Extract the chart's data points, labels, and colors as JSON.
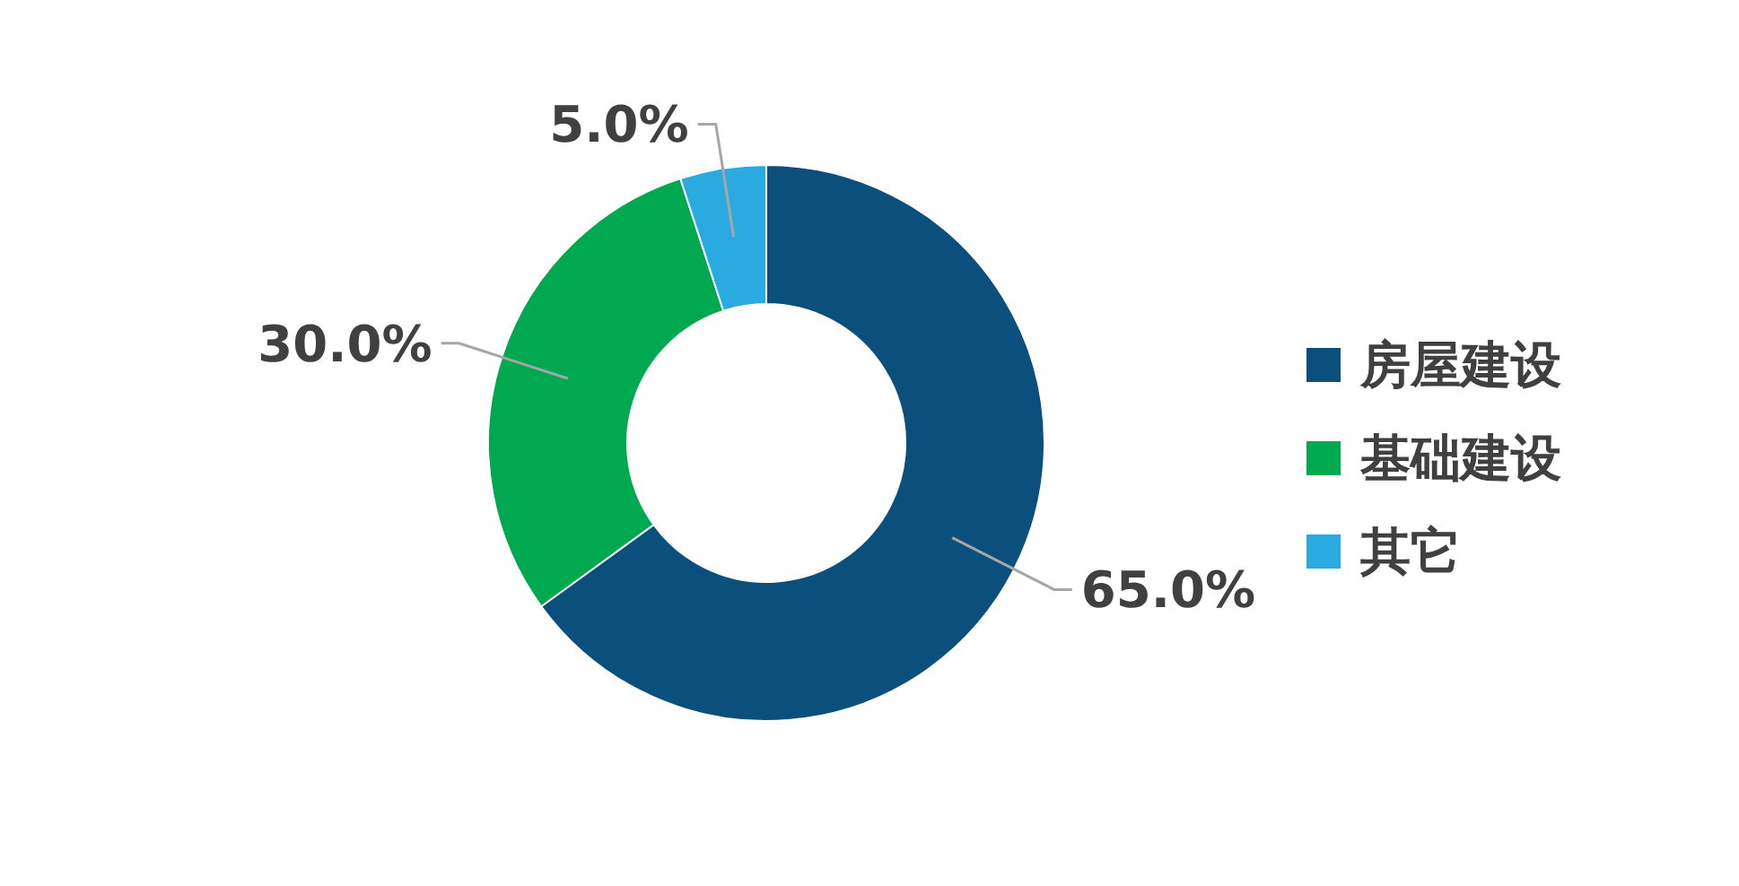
{
  "chart_data": {
    "type": "donut",
    "categories": [
      "房屋建设",
      "基础建设",
      "其它"
    ],
    "values": [
      65,
      30,
      5
    ],
    "colors": [
      "#0b4f7c",
      "#00a94f",
      "#29abe2"
    ],
    "value_labels": [
      "65.0%",
      "30.0%",
      "5.0%"
    ],
    "legend": "right"
  }
}
